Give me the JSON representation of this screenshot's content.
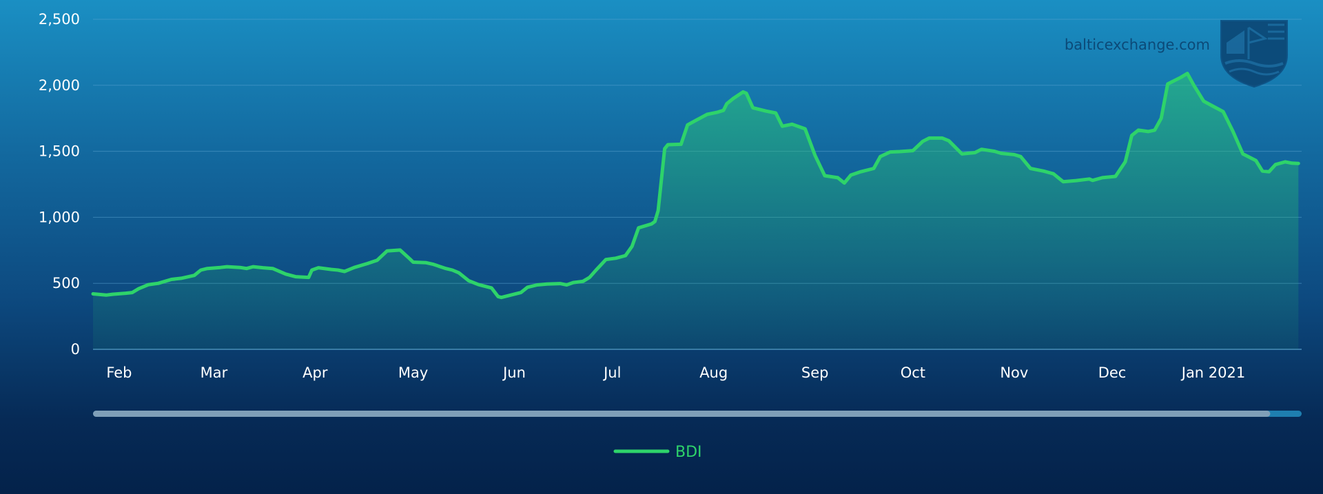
{
  "watermark": {
    "text": "balticexchange.com"
  },
  "legend": {
    "label": "BDI",
    "color": "#2ed36a"
  },
  "colors": {
    "line": "#2ed36a",
    "grid": "#5aa3cf",
    "scrollbar_track": "#7f9fb8",
    "scrollbar_thumb": "#1e7fb0"
  },
  "scrollbar": {
    "visible_fraction_start": 0.0,
    "visible_fraction_end": 0.974
  },
  "chart_data": {
    "type": "area",
    "title": "",
    "xlabel": "",
    "ylabel": "",
    "ylim": [
      0,
      2500
    ],
    "yticks": [
      0,
      500,
      1000,
      1500,
      2000,
      2500
    ],
    "ytick_labels": [
      "0",
      "500",
      "1,000",
      "1,500",
      "2,000",
      "2,500"
    ],
    "xticks": [
      {
        "date": "2020-02-01",
        "label": "Feb"
      },
      {
        "date": "2020-03-01",
        "label": "Mar"
      },
      {
        "date": "2020-04-01",
        "label": "Apr"
      },
      {
        "date": "2020-05-01",
        "label": "May"
      },
      {
        "date": "2020-06-01",
        "label": "Jun"
      },
      {
        "date": "2020-07-01",
        "label": "Jul"
      },
      {
        "date": "2020-08-01",
        "label": "Aug"
      },
      {
        "date": "2020-09-01",
        "label": "Sep"
      },
      {
        "date": "2020-10-01",
        "label": "Oct"
      },
      {
        "date": "2020-11-01",
        "label": "Nov"
      },
      {
        "date": "2020-12-01",
        "label": "Dec"
      },
      {
        "date": "2021-01-01",
        "label": "Jan 2021"
      }
    ],
    "x_range": [
      "2020-01-24",
      "2021-01-28"
    ],
    "grid": true,
    "legend_position": "bottom-center",
    "series": [
      {
        "name": "BDI",
        "points": [
          [
            "2020-01-24",
            420
          ],
          [
            "2020-01-28",
            411
          ],
          [
            "2020-01-30",
            417
          ],
          [
            "2020-02-03",
            425
          ],
          [
            "2020-02-05",
            430
          ],
          [
            "2020-02-07",
            460
          ],
          [
            "2020-02-10",
            490
          ],
          [
            "2020-02-13",
            500
          ],
          [
            "2020-02-17",
            530
          ],
          [
            "2020-02-20",
            538
          ],
          [
            "2020-02-24",
            560
          ],
          [
            "2020-02-26",
            600
          ],
          [
            "2020-02-28",
            612
          ],
          [
            "2020-03-03",
            620
          ],
          [
            "2020-03-05",
            626
          ],
          [
            "2020-03-09",
            620
          ],
          [
            "2020-03-11",
            612
          ],
          [
            "2020-03-13",
            626
          ],
          [
            "2020-03-16",
            618
          ],
          [
            "2020-03-19",
            612
          ],
          [
            "2020-03-23",
            570
          ],
          [
            "2020-03-26",
            550
          ],
          [
            "2020-03-30",
            545
          ],
          [
            "2020-03-31",
            600
          ],
          [
            "2020-04-02",
            618
          ],
          [
            "2020-04-06",
            605
          ],
          [
            "2020-04-08",
            600
          ],
          [
            "2020-04-10",
            590
          ],
          [
            "2020-04-13",
            620
          ],
          [
            "2020-04-17",
            650
          ],
          [
            "2020-04-20",
            675
          ],
          [
            "2020-04-23",
            745
          ],
          [
            "2020-04-27",
            752
          ],
          [
            "2020-04-30",
            685
          ],
          [
            "2020-05-01",
            660
          ],
          [
            "2020-05-05",
            656
          ],
          [
            "2020-05-07",
            645
          ],
          [
            "2020-05-11",
            612
          ],
          [
            "2020-05-13",
            600
          ],
          [
            "2020-05-15",
            580
          ],
          [
            "2020-05-18",
            520
          ],
          [
            "2020-05-21",
            490
          ],
          [
            "2020-05-25",
            465
          ],
          [
            "2020-05-27",
            400
          ],
          [
            "2020-05-28",
            393
          ],
          [
            "2020-06-01",
            418
          ],
          [
            "2020-06-03",
            430
          ],
          [
            "2020-06-05",
            470
          ],
          [
            "2020-06-08",
            488
          ],
          [
            "2020-06-11",
            494
          ],
          [
            "2020-06-15",
            498
          ],
          [
            "2020-06-17",
            488
          ],
          [
            "2020-06-19",
            506
          ],
          [
            "2020-06-22",
            515
          ],
          [
            "2020-06-24",
            545
          ],
          [
            "2020-06-26",
            600
          ],
          [
            "2020-06-29",
            680
          ],
          [
            "2020-07-02",
            690
          ],
          [
            "2020-07-05",
            710
          ],
          [
            "2020-07-07",
            780
          ],
          [
            "2020-07-09",
            920
          ],
          [
            "2020-07-13",
            950
          ],
          [
            "2020-07-14",
            968
          ],
          [
            "2020-07-15",
            1050
          ],
          [
            "2020-07-17",
            1520
          ],
          [
            "2020-07-18",
            1550
          ],
          [
            "2020-07-22",
            1553
          ],
          [
            "2020-07-24",
            1700
          ],
          [
            "2020-07-27",
            1740
          ],
          [
            "2020-07-30",
            1780
          ],
          [
            "2020-08-02",
            1795
          ],
          [
            "2020-08-04",
            1810
          ],
          [
            "2020-08-05",
            1860
          ],
          [
            "2020-08-07",
            1900
          ],
          [
            "2020-08-10",
            1950
          ],
          [
            "2020-08-11",
            1940
          ],
          [
            "2020-08-13",
            1830
          ],
          [
            "2020-08-17",
            1805
          ],
          [
            "2020-08-20",
            1790
          ],
          [
            "2020-08-22",
            1690
          ],
          [
            "2020-08-25",
            1705
          ],
          [
            "2020-08-29",
            1670
          ],
          [
            "2020-09-01",
            1470
          ],
          [
            "2020-09-04",
            1315
          ],
          [
            "2020-09-08",
            1300
          ],
          [
            "2020-09-10",
            1260
          ],
          [
            "2020-09-12",
            1320
          ],
          [
            "2020-09-15",
            1345
          ],
          [
            "2020-09-19",
            1370
          ],
          [
            "2020-09-21",
            1460
          ],
          [
            "2020-09-24",
            1495
          ],
          [
            "2020-09-27",
            1498
          ],
          [
            "2020-10-01",
            1505
          ],
          [
            "2020-10-04",
            1575
          ],
          [
            "2020-10-06",
            1600
          ],
          [
            "2020-10-10",
            1600
          ],
          [
            "2020-10-12",
            1580
          ],
          [
            "2020-10-16",
            1480
          ],
          [
            "2020-10-20",
            1490
          ],
          [
            "2020-10-22",
            1515
          ],
          [
            "2020-10-26",
            1500
          ],
          [
            "2020-10-28",
            1485
          ],
          [
            "2020-11-01",
            1475
          ],
          [
            "2020-11-03",
            1460
          ],
          [
            "2020-11-06",
            1370
          ],
          [
            "2020-11-10",
            1350
          ],
          [
            "2020-11-13",
            1330
          ],
          [
            "2020-11-16",
            1270
          ],
          [
            "2020-11-20",
            1278
          ],
          [
            "2020-11-24",
            1290
          ],
          [
            "2020-11-25",
            1280
          ],
          [
            "2020-11-28",
            1300
          ],
          [
            "2020-12-02",
            1310
          ],
          [
            "2020-12-05",
            1420
          ],
          [
            "2020-12-07",
            1620
          ],
          [
            "2020-12-09",
            1660
          ],
          [
            "2020-12-12",
            1650
          ],
          [
            "2020-12-14",
            1660
          ],
          [
            "2020-12-16",
            1750
          ],
          [
            "2020-12-18",
            2010
          ],
          [
            "2020-12-22",
            2060
          ],
          [
            "2020-12-24",
            2090
          ],
          [
            "2020-12-26",
            2000
          ],
          [
            "2020-12-29",
            1880
          ],
          [
            "2021-01-01",
            1840
          ],
          [
            "2021-01-04",
            1800
          ],
          [
            "2021-01-07",
            1650
          ],
          [
            "2021-01-10",
            1480
          ],
          [
            "2021-01-14",
            1430
          ],
          [
            "2021-01-16",
            1350
          ],
          [
            "2021-01-18",
            1345
          ],
          [
            "2021-01-20",
            1400
          ],
          [
            "2021-01-23",
            1420
          ],
          [
            "2021-01-25",
            1410
          ],
          [
            "2021-01-27",
            1408
          ]
        ]
      }
    ]
  }
}
